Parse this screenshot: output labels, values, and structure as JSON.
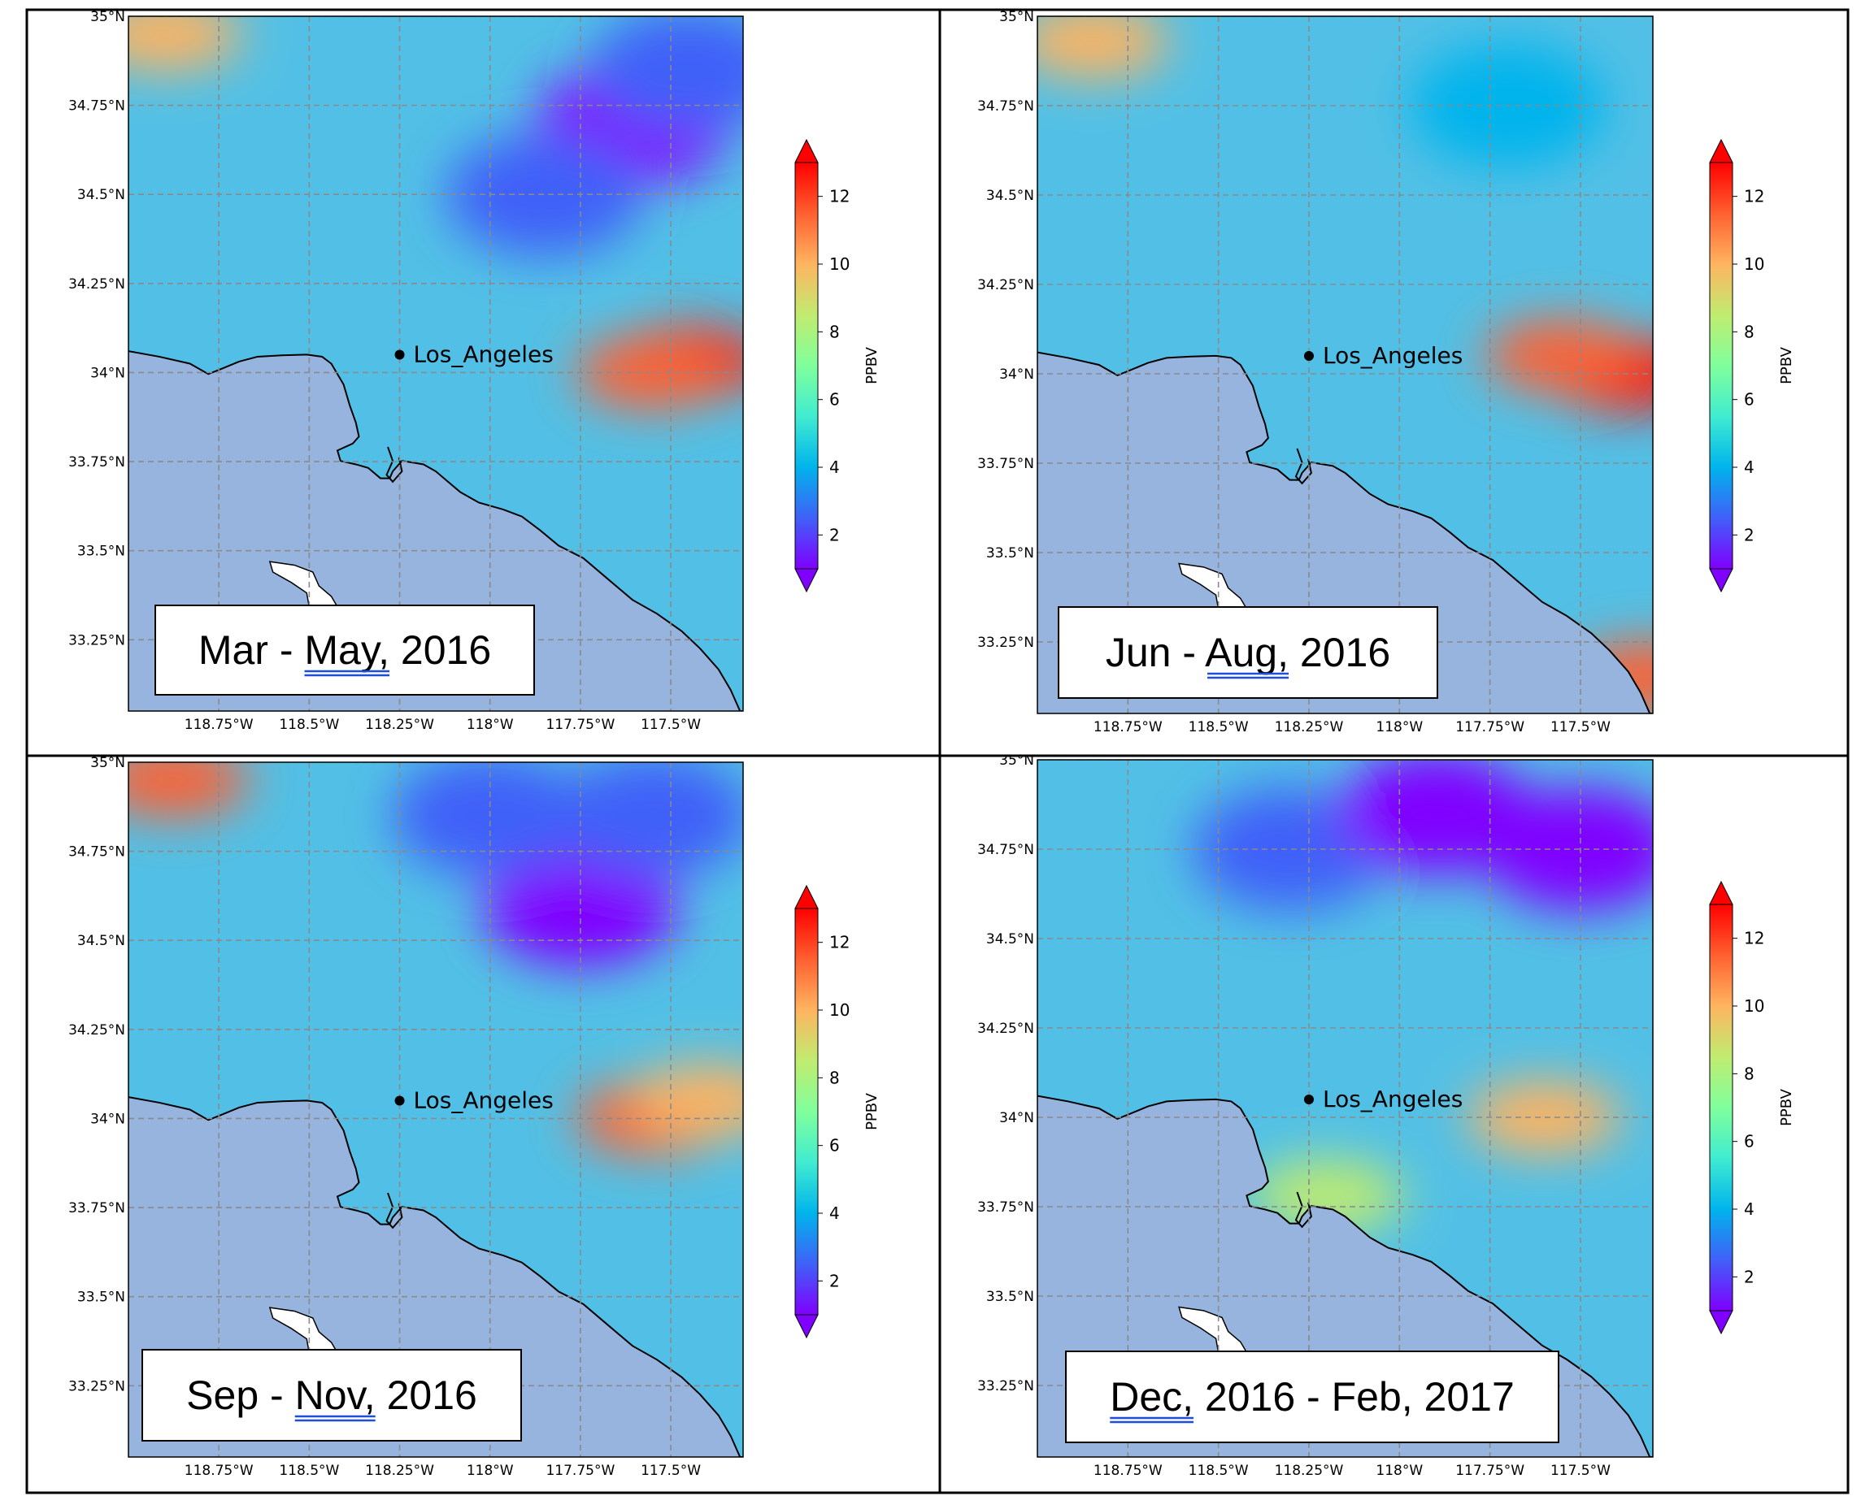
{
  "colorbar": {
    "label": "PPBV",
    "ticks": [
      2,
      4,
      6,
      8,
      10,
      12
    ],
    "vmin": 1,
    "vmax": 13,
    "extend": "both",
    "colormap": "rainbow",
    "colors": [
      "#8000ff",
      "#4060f8",
      "#00b4ec",
      "#40ecd0",
      "#80ff9c",
      "#c0ec70",
      "#ffb460",
      "#ff6030",
      "#ff0000"
    ]
  },
  "map_style": {
    "ocean_color": "#97b4de",
    "land_base_color": "#52c0e6",
    "coast_color": "#000000",
    "gridline_color": "#8a8a8a",
    "city_marker_color": "#000000"
  },
  "chart_data": [
    {
      "type": "heatmap",
      "title": "Mar - May, 2016",
      "title_underlined_word": "May,",
      "xlabel": "",
      "ylabel": "",
      "x_ticks": [
        "118.75°W",
        "118.5°W",
        "118.25°W",
        "118°W",
        "117.75°W",
        "117.5°W"
      ],
      "y_ticks": [
        "35°N",
        "34.75°N",
        "34.5°N",
        "34.25°N",
        "34°N",
        "33.75°N",
        "33.5°N",
        "33.25°N"
      ],
      "lon_range": [
        -119.0,
        -117.3
      ],
      "lat_range": [
        33.05,
        35.0
      ],
      "grid": true,
      "city": {
        "name": "Los_Angeles",
        "lon": -118.25,
        "lat": 34.05
      },
      "colorbar_label": "PPBV",
      "hotspots": [
        {
          "lon": -118.9,
          "lat": 34.95,
          "value": 9.5
        },
        {
          "lon": -117.45,
          "lat": 34.03,
          "value": 12.5
        },
        {
          "lon": -117.55,
          "lat": 34.0,
          "value": 11.0
        }
      ],
      "lowspots": [
        {
          "lon": -117.6,
          "lat": 34.7,
          "value": 1.5
        },
        {
          "lon": -117.85,
          "lat": 34.5,
          "value": 2.0
        },
        {
          "lon": -117.45,
          "lat": 34.85,
          "value": 2.0
        }
      ]
    },
    {
      "type": "heatmap",
      "title": "Jun - Aug, 2016",
      "title_underlined_word": "Aug,",
      "xlabel": "",
      "ylabel": "",
      "x_ticks": [
        "118.75°W",
        "118.5°W",
        "118.25°W",
        "118°W",
        "117.75°W",
        "117.5°W"
      ],
      "y_ticks": [
        "35°N",
        "34.75°N",
        "34.5°N",
        "34.25°N",
        "34°N",
        "33.75°N",
        "33.5°N",
        "33.25°N"
      ],
      "lon_range": [
        -119.0,
        -117.3
      ],
      "lat_range": [
        33.05,
        35.0
      ],
      "grid": true,
      "city": {
        "name": "Los_Angeles",
        "lon": -118.25,
        "lat": 34.05
      },
      "colorbar_label": "PPBV",
      "hotspots": [
        {
          "lon": -118.85,
          "lat": 34.93,
          "value": 10.5
        },
        {
          "lon": -117.38,
          "lat": 34.0,
          "value": 13.0
        },
        {
          "lon": -117.55,
          "lat": 34.05,
          "value": 11.5
        },
        {
          "lon": -117.32,
          "lat": 33.15,
          "value": 12.0
        }
      ],
      "lowspots": [
        {
          "lon": -117.7,
          "lat": 34.75,
          "value": 3.5
        }
      ]
    },
    {
      "type": "heatmap",
      "title": "Sep - Nov, 2016",
      "title_underlined_word": "Nov,",
      "xlabel": "",
      "ylabel": "",
      "x_ticks": [
        "118.75°W",
        "118.5°W",
        "118.25°W",
        "118°W",
        "117.75°W",
        "117.5°W"
      ],
      "y_ticks": [
        "35°N",
        "34.75°N",
        "34.5°N",
        "34.25°N",
        "34°N",
        "33.75°N",
        "33.5°N",
        "33.25°N"
      ],
      "lon_range": [
        -119.0,
        -117.3
      ],
      "lat_range": [
        33.05,
        35.0
      ],
      "grid": true,
      "city": {
        "name": "Los_Angeles",
        "lon": -118.25,
        "lat": 34.05
      },
      "colorbar_label": "PPBV",
      "hotspots": [
        {
          "lon": -118.88,
          "lat": 34.95,
          "value": 11.5
        },
        {
          "lon": -117.55,
          "lat": 34.0,
          "value": 11.5
        },
        {
          "lon": -117.4,
          "lat": 34.05,
          "value": 9.5
        }
      ],
      "lowspots": [
        {
          "lon": -117.75,
          "lat": 34.6,
          "value": 1.5
        },
        {
          "lon": -117.55,
          "lat": 34.85,
          "value": 2.0
        },
        {
          "lon": -118.0,
          "lat": 34.85,
          "value": 2.5
        }
      ]
    },
    {
      "type": "heatmap",
      "title": "Dec, 2016 - Feb, 2017",
      "title_underlined_word": "Dec,",
      "xlabel": "",
      "ylabel": "",
      "x_ticks": [
        "118.75°W",
        "118.5°W",
        "118.25°W",
        "118°W",
        "117.75°W",
        "117.5°W"
      ],
      "y_ticks": [
        "35°N",
        "34.75°N",
        "34.5°N",
        "34.25°N",
        "34°N",
        "33.75°N",
        "33.5°N",
        "33.25°N"
      ],
      "lon_range": [
        -119.0,
        -117.3
      ],
      "lat_range": [
        33.05,
        35.0
      ],
      "grid": true,
      "city": {
        "name": "Los_Angeles",
        "lon": -118.25,
        "lat": 34.05
      },
      "colorbar_label": "PPBV",
      "hotspots": [
        {
          "lon": -117.6,
          "lat": 34.0,
          "value": 9.5
        },
        {
          "lon": -118.2,
          "lat": 33.78,
          "value": 8.0
        }
      ],
      "lowspots": [
        {
          "lon": -117.5,
          "lat": 34.75,
          "value": 1.0
        },
        {
          "lon": -118.3,
          "lat": 34.75,
          "value": 2.0
        },
        {
          "lon": -117.9,
          "lat": 34.85,
          "value": 1.5
        }
      ]
    }
  ]
}
